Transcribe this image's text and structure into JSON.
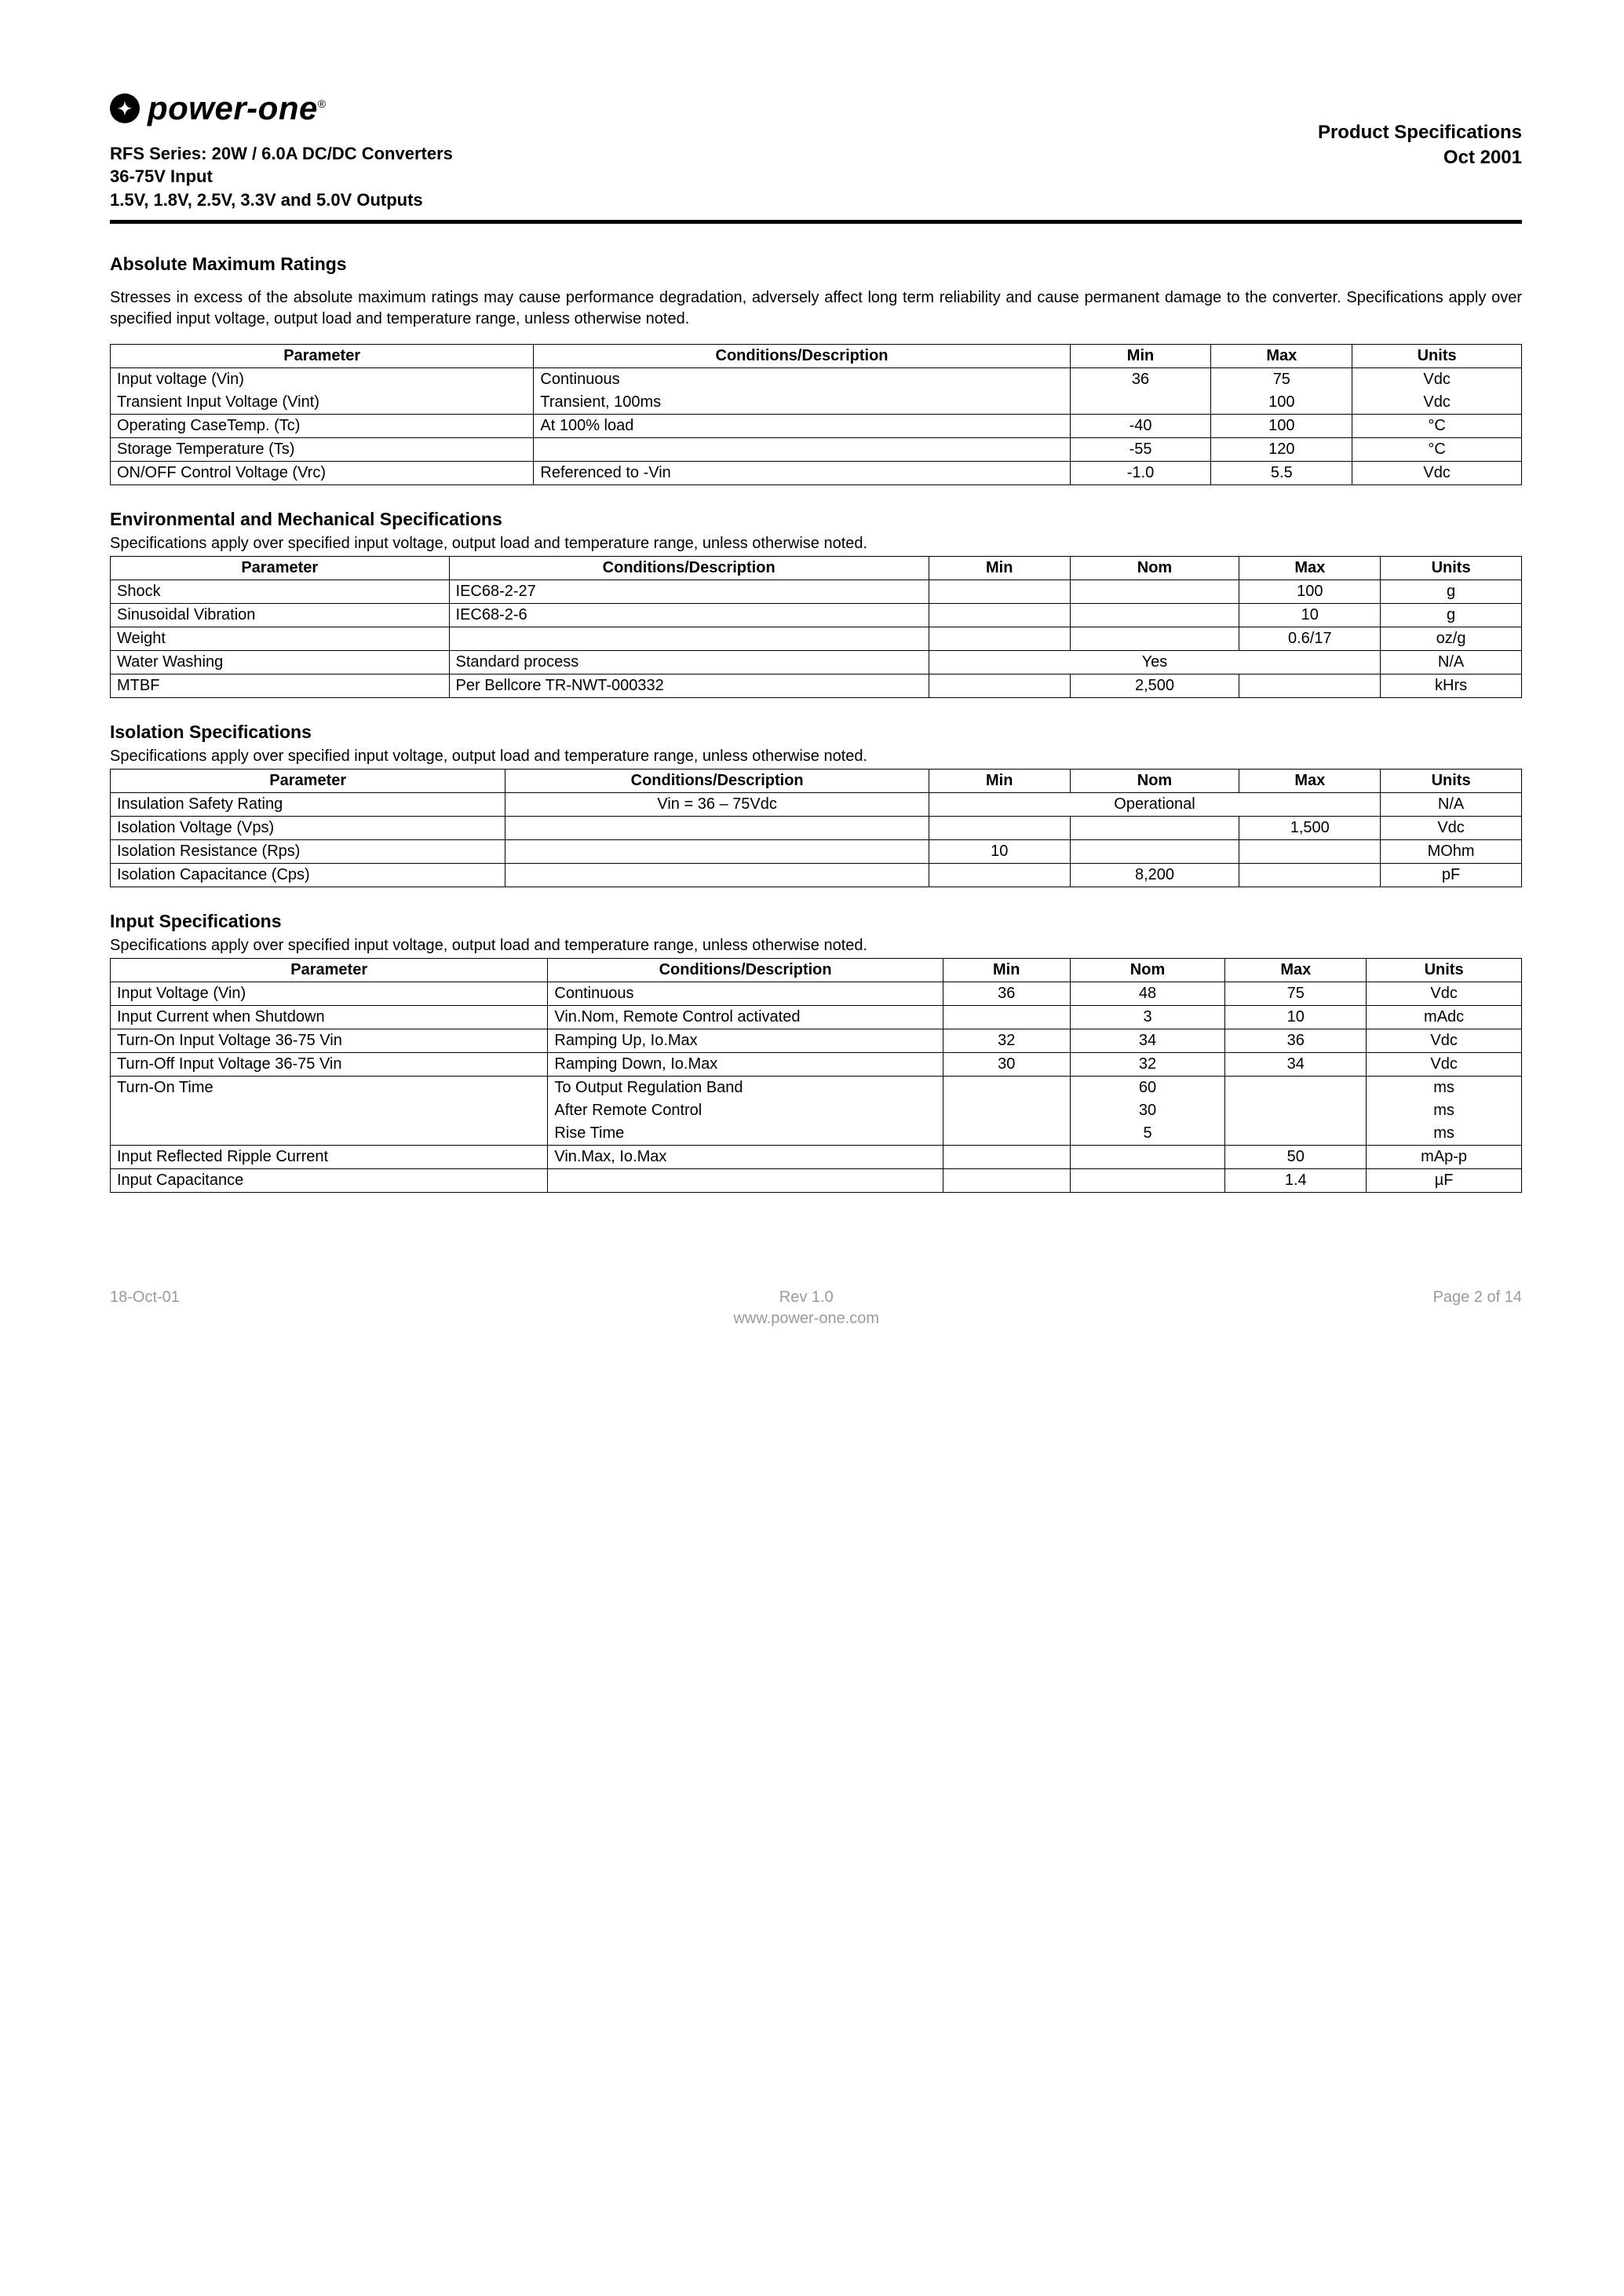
{
  "header": {
    "logo_text": "power-one",
    "product_specs": "Product Specifications",
    "date": "Oct 2001",
    "line1": "RFS Series: 20W / 6.0A DC/DC Converters",
    "line2": "36-75V Input",
    "line3": "1.5V, 1.8V, 2.5V, 3.3V and 5.0V Outputs"
  },
  "abs_max": {
    "title": "Absolute Maximum Ratings",
    "para": "Stresses in excess of the absolute maximum ratings may cause performance degradation, adversely affect long term reliability and cause permanent damage to the converter.  Specifications apply over specified input voltage, output load and temperature range, unless otherwise noted.",
    "cols": {
      "param": "Parameter",
      "cond": "Conditions/Description",
      "min": "Min",
      "max": "Max",
      "units": "Units"
    },
    "rows": [
      {
        "param": "Input voltage (Vin)",
        "cond": "Continuous",
        "min": "36",
        "max": "75",
        "units": "Vdc",
        "border_bottom": false
      },
      {
        "param": "Transient Input Voltage (Vint)",
        "cond": "Transient, 100ms",
        "min": "",
        "max": "100",
        "units": "Vdc",
        "border_top": false
      },
      {
        "param": "Operating CaseTemp. (Tc)",
        "cond": "At 100% load",
        "min": "-40",
        "max": "100",
        "units": "°C"
      },
      {
        "param": "Storage Temperature (Ts)",
        "cond": "",
        "min": "-55",
        "max": "120",
        "units": "°C"
      },
      {
        "param": "ON/OFF Control Voltage (Vrc)",
        "cond": "Referenced to -Vin",
        "min": "-1.0",
        "max": "5.5",
        "units": "Vdc"
      }
    ],
    "col_widths": {
      "param": "30%",
      "cond": "38%",
      "min": "10%",
      "max": "10%",
      "units": "12%"
    }
  },
  "env_mech": {
    "title": "Environmental and Mechanical Specifications",
    "note": "Specifications apply over specified input voltage, output load and temperature range, unless otherwise noted.",
    "cols": {
      "param": "Parameter",
      "cond": "Conditions/Description",
      "min": "Min",
      "nom": "Nom",
      "max": "Max",
      "units": "Units"
    },
    "rows": [
      {
        "param": "Shock",
        "cond": "IEC68-2-27",
        "min": "",
        "nom": "",
        "max": "100",
        "units": "g"
      },
      {
        "param": "Sinusoidal Vibration",
        "cond": "IEC68-2-6",
        "min": "",
        "nom": "",
        "max": "10",
        "units": "g"
      },
      {
        "param": "Weight",
        "cond": "",
        "min": "",
        "nom": "",
        "max": "0.6/17",
        "units": "oz/g"
      },
      {
        "param": "Water Washing",
        "cond": "Standard process",
        "span": "Yes",
        "units": "N/A"
      },
      {
        "param": "MTBF",
        "cond": "Per Bellcore TR-NWT-000332",
        "min": "",
        "nom": "2,500",
        "max": "",
        "units": "kHrs"
      }
    ],
    "col_widths": {
      "param": "24%",
      "cond": "34%",
      "min": "10%",
      "nom": "12%",
      "max": "10%",
      "units": "10%"
    }
  },
  "isolation": {
    "title": "Isolation Specifications",
    "note": "Specifications apply over specified input voltage, output load and temperature range, unless otherwise noted.",
    "cols": {
      "param": "Parameter",
      "cond": "Conditions/Description",
      "min": "Min",
      "nom": "Nom",
      "max": "Max",
      "units": "Units"
    },
    "rows": [
      {
        "param": "Insulation Safety Rating",
        "cond": "Vin = 36 – 75Vdc",
        "span": "Operational",
        "units": "N/A"
      },
      {
        "param": "Isolation Voltage (Vps)",
        "cond": "",
        "min": "",
        "nom": "",
        "max": "1,500",
        "units": "Vdc"
      },
      {
        "param": "Isolation Resistance (Rps)",
        "cond": "",
        "min": "10",
        "nom": "",
        "max": "",
        "units": "MOhm"
      },
      {
        "param": "Isolation Capacitance (Cps)",
        "cond": "",
        "min": "",
        "nom": "8,200",
        "max": "",
        "units": "pF"
      }
    ],
    "col_widths": {
      "param": "28%",
      "cond": "30%",
      "min": "10%",
      "nom": "12%",
      "max": "10%",
      "units": "10%"
    }
  },
  "input": {
    "title": "Input Specifications",
    "note": "Specifications apply over specified input voltage, output load and temperature range, unless otherwise noted.",
    "cols": {
      "param": "Parameter",
      "cond": "Conditions/Description",
      "min": "Min",
      "nom": "Nom",
      "max": "Max",
      "units": "Units"
    },
    "rows": [
      {
        "param": "Input Voltage (Vin)",
        "cond": "Continuous",
        "min": "36",
        "nom": "48",
        "max": "75",
        "units": "Vdc"
      },
      {
        "param": "Input Current when Shutdown",
        "cond": "Vin.Nom, Remote Control activated",
        "min": "",
        "nom": "3",
        "max": "10",
        "units": "mAdc"
      },
      {
        "param": "Turn-On Input Voltage 36-75 Vin",
        "cond": "Ramping Up, Io.Max",
        "min": "32",
        "nom": "34",
        "max": "36",
        "units": "Vdc"
      },
      {
        "param": "Turn-Off Input Voltage 36-75 Vin",
        "cond": "Ramping Down, Io.Max",
        "min": "30",
        "nom": "32",
        "max": "34",
        "units": "Vdc"
      },
      {
        "param": "Turn-On Time",
        "cond": "To Output Regulation Band",
        "min": "",
        "nom": "60",
        "max": "",
        "units": "ms",
        "border_bottom": false
      },
      {
        "param": "",
        "cond": "After Remote Control",
        "min": "",
        "nom": "30",
        "max": "",
        "units": "ms",
        "border_top": false,
        "border_bottom": false
      },
      {
        "param": "",
        "cond": "Rise Time",
        "min": "",
        "nom": "5",
        "max": "",
        "units": "ms",
        "border_top": false
      },
      {
        "param": "Input Reflected Ripple Current",
        "cond": "Vin.Max, Io.Max",
        "min": "",
        "nom": "",
        "max": "50",
        "units": "mAp-p"
      },
      {
        "param": "Input Capacitance",
        "cond": "",
        "min": "",
        "nom": "",
        "max": "1.4",
        "units": "µF"
      }
    ],
    "col_widths": {
      "param": "31%",
      "cond": "28%",
      "min": "9%",
      "nom": "11%",
      "max": "10%",
      "units": "11%"
    }
  },
  "footer": {
    "left": "18-Oct-01",
    "center1": "Rev 1.0",
    "center2": "www.power-one.com",
    "right": "Page 2 of 14"
  }
}
